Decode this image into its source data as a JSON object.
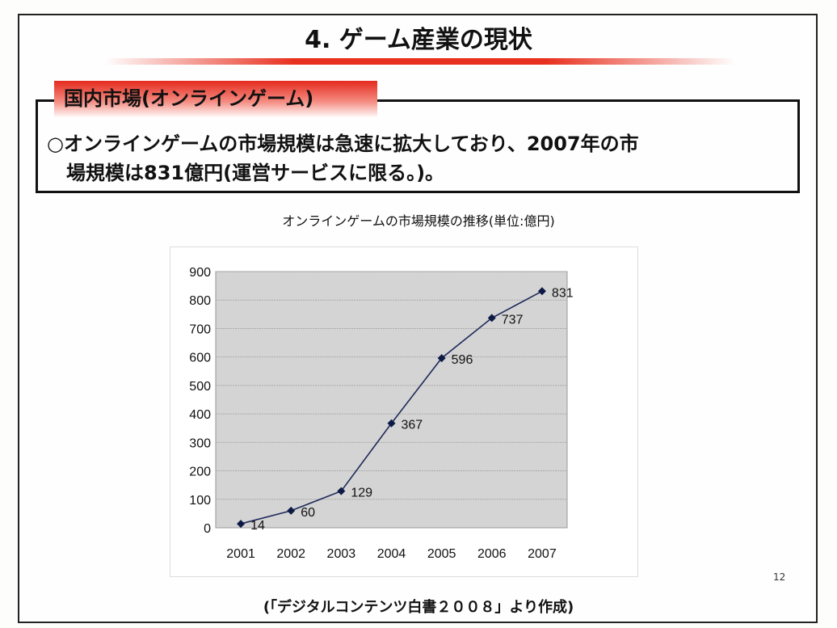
{
  "slide": {
    "title": "4. ゲーム産業の現状",
    "section_tab": "国内市場(オンラインゲーム)",
    "body_line1": "○オンラインゲームの市場規模は急速に拡大しており、2007年の市",
    "body_line2": "　場規模は831億円(運営サービスに限る。)。",
    "page_number": "12",
    "source": "(「デジタルコンテンツ白書２００８」より作成)"
  },
  "colors": {
    "accent": "#e52b1e",
    "line": "#1f2a5a",
    "plot_bg": "#d4d4d4"
  },
  "chart_data": {
    "type": "line",
    "title": "オンラインゲームの市場規模の推移(単位:億円)",
    "categories": [
      "2001",
      "2002",
      "2003",
      "2004",
      "2005",
      "2006",
      "2007"
    ],
    "values": [
      14,
      60,
      129,
      367,
      596,
      737,
      831
    ],
    "data_labels": [
      "14",
      "60",
      "129",
      "367",
      "596",
      "737",
      "831"
    ],
    "ylim": [
      0,
      900
    ],
    "yticks": [
      "0",
      "100",
      "200",
      "300",
      "400",
      "500",
      "600",
      "700",
      "800",
      "900"
    ],
    "xlabel": "",
    "ylabel": "",
    "grid": true,
    "legend": "none"
  }
}
